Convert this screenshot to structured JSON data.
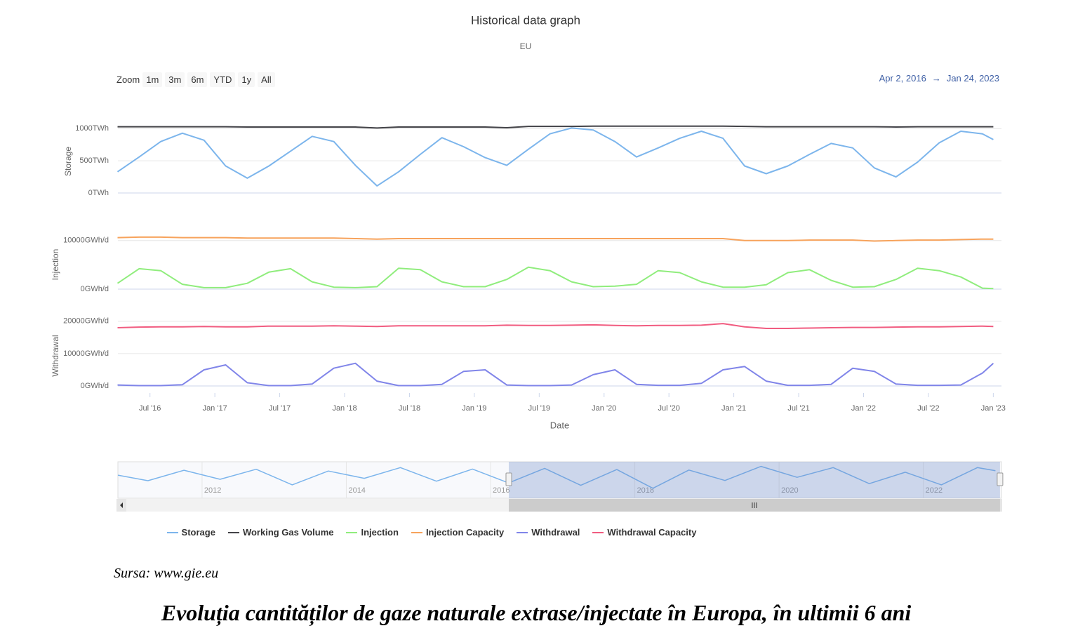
{
  "header": {
    "title": "Historical data graph",
    "subtitle": "EU"
  },
  "zoom": {
    "label": "Zoom",
    "buttons": [
      "1m",
      "3m",
      "6m",
      "YTD",
      "1y",
      "All"
    ]
  },
  "range": {
    "from": "Apr 2, 2016",
    "arrow": "→",
    "to": "Jan 24, 2023"
  },
  "chart_data": [
    {
      "type": "line",
      "ylabel": "Storage",
      "x": [
        "2016-04",
        "2016-06",
        "2016-08",
        "2016-10",
        "2016-12",
        "2017-02",
        "2017-04",
        "2017-06",
        "2017-08",
        "2017-10",
        "2017-12",
        "2018-02",
        "2018-04",
        "2018-06",
        "2018-08",
        "2018-10",
        "2018-12",
        "2019-02",
        "2019-04",
        "2019-06",
        "2019-08",
        "2019-10",
        "2019-12",
        "2020-02",
        "2020-04",
        "2020-06",
        "2020-08",
        "2020-10",
        "2020-12",
        "2021-02",
        "2021-04",
        "2021-06",
        "2021-08",
        "2021-10",
        "2021-12",
        "2022-02",
        "2022-04",
        "2022-06",
        "2022-08",
        "2022-10",
        "2022-12",
        "2023-01"
      ],
      "xlim": [
        "2016-04-02",
        "2023-01-24"
      ],
      "ylim": [
        0,
        1200
      ],
      "yticks": [
        {
          "value": 0,
          "label": "0TWh"
        },
        {
          "value": 500,
          "label": "500TWh"
        },
        {
          "value": 1000,
          "label": "1000TWh"
        }
      ],
      "grid": true,
      "series": [
        {
          "name": "Storage",
          "color": "#7cb5ec",
          "values": [
            330,
            560,
            800,
            930,
            820,
            420,
            230,
            420,
            650,
            880,
            800,
            430,
            110,
            330,
            600,
            860,
            720,
            550,
            430,
            680,
            920,
            1010,
            980,
            800,
            560,
            700,
            850,
            960,
            850,
            420,
            300,
            420,
            600,
            770,
            700,
            390,
            250,
            480,
            780,
            960,
            920,
            830
          ]
        },
        {
          "name": "Working Gas Volume",
          "color": "#434348",
          "values": [
            1030,
            1030,
            1030,
            1030,
            1030,
            1030,
            1025,
            1025,
            1025,
            1025,
            1025,
            1025,
            1010,
            1025,
            1025,
            1025,
            1025,
            1025,
            1015,
            1035,
            1035,
            1035,
            1040,
            1040,
            1040,
            1040,
            1040,
            1040,
            1040,
            1035,
            1030,
            1030,
            1030,
            1030,
            1030,
            1030,
            1025,
            1030,
            1030,
            1030,
            1030,
            1030
          ]
        }
      ]
    },
    {
      "type": "line",
      "ylabel": "Injection",
      "x": [
        "2016-04",
        "2016-06",
        "2016-08",
        "2016-10",
        "2016-12",
        "2017-02",
        "2017-04",
        "2017-06",
        "2017-08",
        "2017-10",
        "2017-12",
        "2018-02",
        "2018-04",
        "2018-06",
        "2018-08",
        "2018-10",
        "2018-12",
        "2019-02",
        "2019-04",
        "2019-06",
        "2019-08",
        "2019-10",
        "2019-12",
        "2020-02",
        "2020-04",
        "2020-06",
        "2020-08",
        "2020-10",
        "2020-12",
        "2021-02",
        "2021-04",
        "2021-06",
        "2021-08",
        "2021-10",
        "2021-12",
        "2022-02",
        "2022-04",
        "2022-06",
        "2022-08",
        "2022-10",
        "2022-12",
        "2023-01"
      ],
      "xlim": [
        "2016-04-02",
        "2023-01-24"
      ],
      "ylim": [
        0,
        13000
      ],
      "yticks": [
        {
          "value": 0,
          "label": "0GWh/d"
        },
        {
          "value": 10000,
          "label": "10000GWh/d"
        }
      ],
      "grid": true,
      "series": [
        {
          "name": "Injection",
          "color": "#90ed7d",
          "values": [
            1200,
            4200,
            3800,
            1000,
            300,
            300,
            1200,
            3500,
            4200,
            1500,
            400,
            300,
            500,
            4300,
            4000,
            1500,
            500,
            500,
            2000,
            4500,
            3800,
            1500,
            500,
            600,
            1000,
            3800,
            3400,
            1500,
            400,
            400,
            900,
            3400,
            4000,
            1800,
            400,
            500,
            2000,
            4300,
            3800,
            2500,
            200,
            100
          ]
        },
        {
          "name": "Injection Capacity",
          "color": "#f7a35c",
          "values": [
            10600,
            10700,
            10700,
            10600,
            10600,
            10600,
            10500,
            10500,
            10500,
            10500,
            10500,
            10400,
            10300,
            10400,
            10400,
            10400,
            10400,
            10400,
            10400,
            10400,
            10400,
            10400,
            10400,
            10400,
            10400,
            10400,
            10400,
            10400,
            10400,
            10000,
            10000,
            10000,
            10100,
            10100,
            10100,
            9900,
            10000,
            10100,
            10100,
            10200,
            10300,
            10300
          ]
        }
      ]
    },
    {
      "type": "line",
      "ylabel": "Withdrawal",
      "xlabel": "Date",
      "x": [
        "2016-04",
        "2016-06",
        "2016-08",
        "2016-10",
        "2016-12",
        "2017-02",
        "2017-04",
        "2017-06",
        "2017-08",
        "2017-10",
        "2017-12",
        "2018-02",
        "2018-04",
        "2018-06",
        "2018-08",
        "2018-10",
        "2018-12",
        "2019-02",
        "2019-04",
        "2019-06",
        "2019-08",
        "2019-10",
        "2019-12",
        "2020-02",
        "2020-04",
        "2020-06",
        "2020-08",
        "2020-10",
        "2020-12",
        "2021-02",
        "2021-04",
        "2021-06",
        "2021-08",
        "2021-10",
        "2021-12",
        "2022-02",
        "2022-04",
        "2022-06",
        "2022-08",
        "2022-10",
        "2022-12",
        "2023-01"
      ],
      "xlim": [
        "2016-04-02",
        "2023-01-24"
      ],
      "xticks": [
        {
          "value": "2016-07",
          "label": "Jul '16"
        },
        {
          "value": "2017-01",
          "label": "Jan '17"
        },
        {
          "value": "2017-07",
          "label": "Jul '17"
        },
        {
          "value": "2018-01",
          "label": "Jan '18"
        },
        {
          "value": "2018-07",
          "label": "Jul '18"
        },
        {
          "value": "2019-01",
          "label": "Jan '19"
        },
        {
          "value": "2019-07",
          "label": "Jul '19"
        },
        {
          "value": "2020-01",
          "label": "Jan '20"
        },
        {
          "value": "2020-07",
          "label": "Jul '20"
        },
        {
          "value": "2021-01",
          "label": "Jan '21"
        },
        {
          "value": "2021-07",
          "label": "Jul '21"
        },
        {
          "value": "2022-01",
          "label": "Jan '22"
        },
        {
          "value": "2022-07",
          "label": "Jul '22"
        },
        {
          "value": "2023-01",
          "label": "Jan '23"
        }
      ],
      "ylim": [
        0,
        23000
      ],
      "yticks": [
        {
          "value": 0,
          "label": "0GWh/d"
        },
        {
          "value": 10000,
          "label": "10000GWh/d"
        },
        {
          "value": 20000,
          "label": "20000GWh/d"
        }
      ],
      "grid": true,
      "series": [
        {
          "name": "Withdrawal",
          "color": "#8085e9",
          "values": [
            300,
            100,
            100,
            400,
            5000,
            6500,
            1000,
            100,
            100,
            600,
            5500,
            7000,
            1500,
            100,
            100,
            500,
            4500,
            5000,
            300,
            100,
            100,
            300,
            3500,
            5000,
            500,
            200,
            200,
            800,
            5000,
            6000,
            1500,
            200,
            200,
            500,
            5500,
            4500,
            600,
            200,
            200,
            300,
            4000,
            7000
          ]
        },
        {
          "name": "Withdrawal Capacity",
          "color": "#f15c80",
          "values": [
            18000,
            18200,
            18300,
            18300,
            18400,
            18300,
            18300,
            18500,
            18500,
            18500,
            18600,
            18500,
            18400,
            18600,
            18600,
            18600,
            18600,
            18600,
            18800,
            18700,
            18700,
            18800,
            18900,
            18700,
            18600,
            18700,
            18700,
            18800,
            19300,
            18300,
            17800,
            17800,
            17900,
            18000,
            18100,
            18100,
            18200,
            18300,
            18300,
            18400,
            18500,
            18400
          ]
        }
      ]
    },
    {
      "type": "line",
      "x": [
        "2010-11",
        "2011-04",
        "2011-10",
        "2012-04",
        "2012-10",
        "2013-04",
        "2013-10",
        "2014-04",
        "2014-10",
        "2015-04",
        "2015-10",
        "2016-04",
        "2016-10",
        "2017-04",
        "2017-10",
        "2018-04",
        "2018-10",
        "2019-04",
        "2019-10",
        "2020-04",
        "2020-10",
        "2021-04",
        "2021-10",
        "2022-04",
        "2022-10",
        "2023-01"
      ],
      "xlim": [
        "2010-11",
        "2023-02"
      ],
      "xticks": [
        {
          "value": "2012-01",
          "label": "2012"
        },
        {
          "value": "2014-01",
          "label": "2014"
        },
        {
          "value": "2016-01",
          "label": "2016"
        },
        {
          "value": "2018-01",
          "label": "2018"
        },
        {
          "value": "2020-01",
          "label": "2020"
        },
        {
          "value": "2022-01",
          "label": "2022"
        }
      ],
      "ylim": [
        -300,
        1200
      ],
      "color": "#7cb5ec",
      "values": [
        650,
        420,
        850,
        480,
        890,
        250,
        820,
        520,
        960,
        400,
        900,
        330,
        930,
        230,
        880,
        110,
        860,
        430,
        1010,
        560,
        960,
        300,
        770,
        250,
        960,
        830
      ]
    }
  ],
  "footer": {
    "source": "Sursa: www.gie.eu",
    "caption": "Evoluția cantităților de gaze naturale extrase/injectate în Europa, în ultimii 6 ani"
  }
}
